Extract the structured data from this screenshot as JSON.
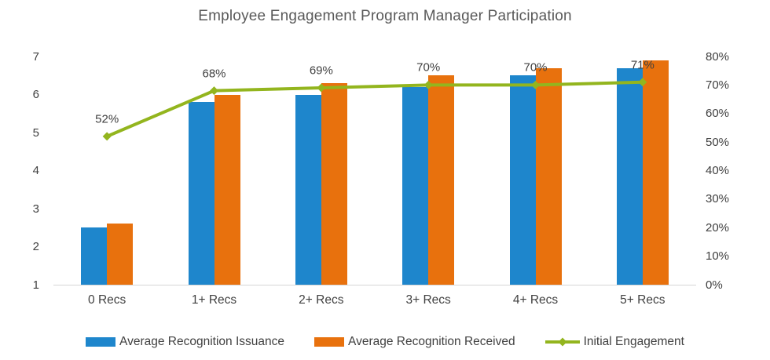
{
  "title": "Employee Engagement Program Manager Participation",
  "chart_data": {
    "type": "combo",
    "title": "Employee Engagement Program Manager Participation",
    "categories": [
      "0 Recs",
      "1+ Recs",
      "2+ Recs",
      "3+ Recs",
      "4+ Recs",
      "5+ Recs"
    ],
    "series": [
      {
        "name": "Average Recognition Issuance",
        "type": "bar",
        "axis": "left",
        "color": "#1E86CC",
        "values": [
          2.5,
          5.8,
          6.0,
          6.2,
          6.5,
          6.7
        ]
      },
      {
        "name": "Average Recognition Received",
        "type": "bar",
        "axis": "left",
        "color": "#E8710D",
        "values": [
          2.6,
          6.0,
          6.3,
          6.5,
          6.7,
          6.9
        ]
      },
      {
        "name": "Initial Engagement",
        "type": "line",
        "axis": "right",
        "color": "#93B51E",
        "marker": "diamond",
        "values": [
          52,
          68,
          69,
          70,
          70,
          71
        ],
        "point_labels": [
          "52%",
          "68%",
          "69%",
          "70%",
          "70%",
          "71%"
        ]
      }
    ],
    "left_axis": {
      "min": 1,
      "max": 7,
      "step": 1,
      "tick_labels": [
        "1",
        "2",
        "3",
        "4",
        "5",
        "6",
        "7"
      ]
    },
    "right_axis": {
      "min": 0,
      "max": 80,
      "step": 10,
      "tick_labels": [
        "0%",
        "10%",
        "20%",
        "30%",
        "40%",
        "50%",
        "60%",
        "70%",
        "80%"
      ]
    },
    "grid": false,
    "legend_position": "bottom",
    "colors": {
      "title_text": "#595959",
      "axis_text": "#404040",
      "axis_line": "#D6D6D6",
      "bar_blue": "#1E86CC",
      "bar_orange": "#E8710D",
      "line_green": "#93B51E"
    }
  }
}
